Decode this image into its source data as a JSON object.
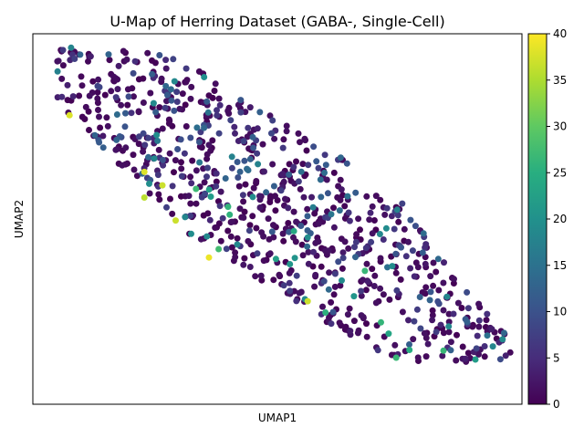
{
  "chart_data": {
    "type": "scatter",
    "title": "U-Map of Herring Dataset (GABA-, Single-Cell)",
    "xlabel": "UMAP1",
    "ylabel": "UMAP2",
    "xlim": [
      0,
      100
    ],
    "ylim": [
      0,
      100
    ],
    "grid": false,
    "colormap": "viridis",
    "colorbar": {
      "min": 0,
      "max": 40,
      "ticks": [
        "0",
        "5",
        "10",
        "15",
        "20",
        "25",
        "30",
        "35",
        "40"
      ]
    },
    "point_count": 850,
    "random_seed": 20240517,
    "highlighted_points": [
      {
        "x": 7.5,
        "y": 78.0,
        "value": 38
      },
      {
        "x": 22.8,
        "y": 62.7,
        "value": 38
      },
      {
        "x": 26.5,
        "y": 59.1,
        "value": 37
      },
      {
        "x": 22.8,
        "y": 55.8,
        "value": 36
      },
      {
        "x": 29.2,
        "y": 49.6,
        "value": 37
      },
      {
        "x": 36.0,
        "y": 39.6,
        "value": 39
      },
      {
        "x": 56.2,
        "y": 27.8,
        "value": 37
      }
    ]
  }
}
